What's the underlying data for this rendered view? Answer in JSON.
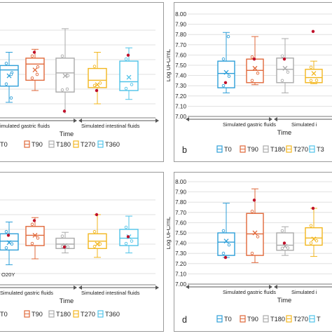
{
  "legend": [
    "T0",
    "T90",
    "T180",
    "T270",
    "T360"
  ],
  "colors": {
    "T0": "#2e9fd8",
    "T90": "#e0683a",
    "T180": "#aaaaaa",
    "T270": "#f2b61e",
    "T360": "#4fc3e8",
    "mean_marker": "#c0102a",
    "axis": "#555555",
    "grid": "#d9d9d9"
  },
  "shared": {
    "xlabel": "Time",
    "ylabel": "Log UFC/mL",
    "group_gastric": "Simulated gastric fluids",
    "group_intestinal": "Simulated intestinal fluids",
    "yticks": [
      "7.00",
      "7.10",
      "7.20",
      "7.30",
      "7.40",
      "7.50",
      "7.60",
      "7.70",
      "7.80",
      "7.90",
      "8.00"
    ]
  },
  "panels": {
    "a": {
      "letter": "",
      "legend_note": "",
      "gastric_label": "imulated gastric fluids",
      "intestinal_label": "Simulated intestinal fluids",
      "legend_visible": [
        "T0",
        "T90",
        "T180",
        "T270",
        "T360"
      ]
    },
    "b": {
      "letter": "b",
      "legend_note": "",
      "gastric_label": "Simulated gastric fluids",
      "intestinal_label": "Simulated i",
      "legend_visible": [
        "T0",
        "T90",
        "T180",
        "T270",
        "T3"
      ]
    },
    "c": {
      "letter": "",
      "legend_note": "O20Y",
      "gastric_label": "Simulated gastric fluids",
      "intestinal_label": "Simulated intestinal fluids",
      "legend_visible": [
        "T0",
        "T90",
        "T180",
        "T270",
        "T360"
      ]
    },
    "d": {
      "letter": "d",
      "legend_note": "",
      "gastric_label": "Simulated gastric fluids",
      "intestinal_label": "Simulated i",
      "legend_visible": [
        "T0",
        "T90",
        "T180",
        "T270",
        "T"
      ]
    }
  },
  "chart_data": [
    {
      "type": "box",
      "panel": "a",
      "categories": [
        "T0",
        "T90",
        "T180",
        "T270",
        "T360"
      ],
      "series": [
        {
          "name": "T0",
          "min": 7.21,
          "q1": 7.32,
          "median": 7.43,
          "q3": 7.46,
          "max": 7.55,
          "mean": 7.39,
          "points": [
            7.78,
            7.24,
            7.4
          ]
        },
        {
          "name": "T90",
          "min": 7.29,
          "q1": 7.36,
          "median": 7.47,
          "q3": 7.51,
          "max": 7.57,
          "mean": 7.43,
          "points": [
            7.55,
            7.4
          ]
        },
        {
          "name": "T180",
          "min": 7.12,
          "q1": 7.28,
          "median": 7.41,
          "q3": 7.51,
          "max": 7.71,
          "mean": 7.39,
          "points": [
            7.15,
            7.3
          ]
        },
        {
          "name": "T270",
          "min": 7.2,
          "q1": 7.31,
          "median": 7.36,
          "q3": 7.44,
          "max": 7.55,
          "mean": 7.33,
          "points": [
            7.29
          ]
        },
        {
          "name": "T360",
          "min": 7.23,
          "q1": 7.29,
          "median": 7.35,
          "q3": 7.49,
          "max": 7.58,
          "mean": 7.38,
          "points": [
            7.53
          ]
        }
      ]
    },
    {
      "type": "box",
      "panel": "b",
      "categories": [
        "T0",
        "T90",
        "T180",
        "T270",
        "T360"
      ],
      "ylim": [
        7.0,
        8.0
      ],
      "series": [
        {
          "name": "T0",
          "min": 7.23,
          "q1": 7.28,
          "median": 7.42,
          "q3": 7.54,
          "max": 7.82,
          "mean": 7.43,
          "points": [
            7.33,
            7.78
          ]
        },
        {
          "name": "T90",
          "min": 7.31,
          "q1": 7.33,
          "median": 7.45,
          "q3": 7.56,
          "max": 7.78,
          "mean": 7.47,
          "points": [
            7.56
          ]
        },
        {
          "name": "T180",
          "min": 7.23,
          "q1": 7.33,
          "median": 7.46,
          "q3": 7.57,
          "max": 7.76,
          "mean": 7.47,
          "points": [
            7.56
          ]
        },
        {
          "name": "T270",
          "min": 7.32,
          "q1": 7.33,
          "median": 7.38,
          "q3": 7.46,
          "max": 7.54,
          "mean": 7.42,
          "points": [
            7.83
          ]
        }
      ]
    },
    {
      "type": "box",
      "panel": "c",
      "categories": [
        "T0",
        "T90",
        "T180",
        "T270",
        "T360"
      ],
      "series": [
        {
          "name": "T0",
          "min": 7.26,
          "q1": 7.36,
          "median": 7.42,
          "q3": 7.47,
          "max": 7.55,
          "mean": 7.41,
          "points": [
            7.46
          ]
        },
        {
          "name": "T90",
          "min": 7.3,
          "q1": 7.39,
          "median": 7.46,
          "q3": 7.52,
          "max": 7.58,
          "mean": 7.46,
          "points": [
            7.56
          ]
        },
        {
          "name": "T180",
          "min": 7.34,
          "q1": 7.37,
          "median": 7.4,
          "q3": 7.44,
          "max": 7.48,
          "mean": 7.39,
          "points": [
            7.38
          ]
        },
        {
          "name": "T270",
          "min": 7.31,
          "q1": 7.37,
          "median": 7.42,
          "q3": 7.47,
          "max": 7.6,
          "mean": 7.4,
          "points": [
            7.6
          ]
        },
        {
          "name": "T360",
          "min": 7.34,
          "q1": 7.39,
          "median": 7.44,
          "q3": 7.5,
          "max": 7.59,
          "mean": 7.45,
          "points": [
            7.45
          ]
        }
      ]
    },
    {
      "type": "box",
      "panel": "d",
      "categories": [
        "T0",
        "T90",
        "T180",
        "T270",
        "T360"
      ],
      "ylim": [
        7.0,
        8.0
      ],
      "series": [
        {
          "name": "T0",
          "min": 7.26,
          "q1": 7.28,
          "median": 7.41,
          "q3": 7.5,
          "max": 7.79,
          "mean": 7.42,
          "points": [
            7.26
          ]
        },
        {
          "name": "T90",
          "min": 7.21,
          "q1": 7.28,
          "median": 7.49,
          "q3": 7.69,
          "max": 7.93,
          "mean": 7.5,
          "points": [
            7.82
          ]
        },
        {
          "name": "T180",
          "min": 7.28,
          "q1": 7.33,
          "median": 7.38,
          "q3": 7.5,
          "max": 7.56,
          "mean": 7.37,
          "points": [
            7.4
          ]
        },
        {
          "name": "T270",
          "min": 7.27,
          "q1": 7.38,
          "median": 7.45,
          "q3": 7.55,
          "max": 7.74,
          "mean": 7.44,
          "points": [
            7.74
          ]
        }
      ]
    }
  ]
}
